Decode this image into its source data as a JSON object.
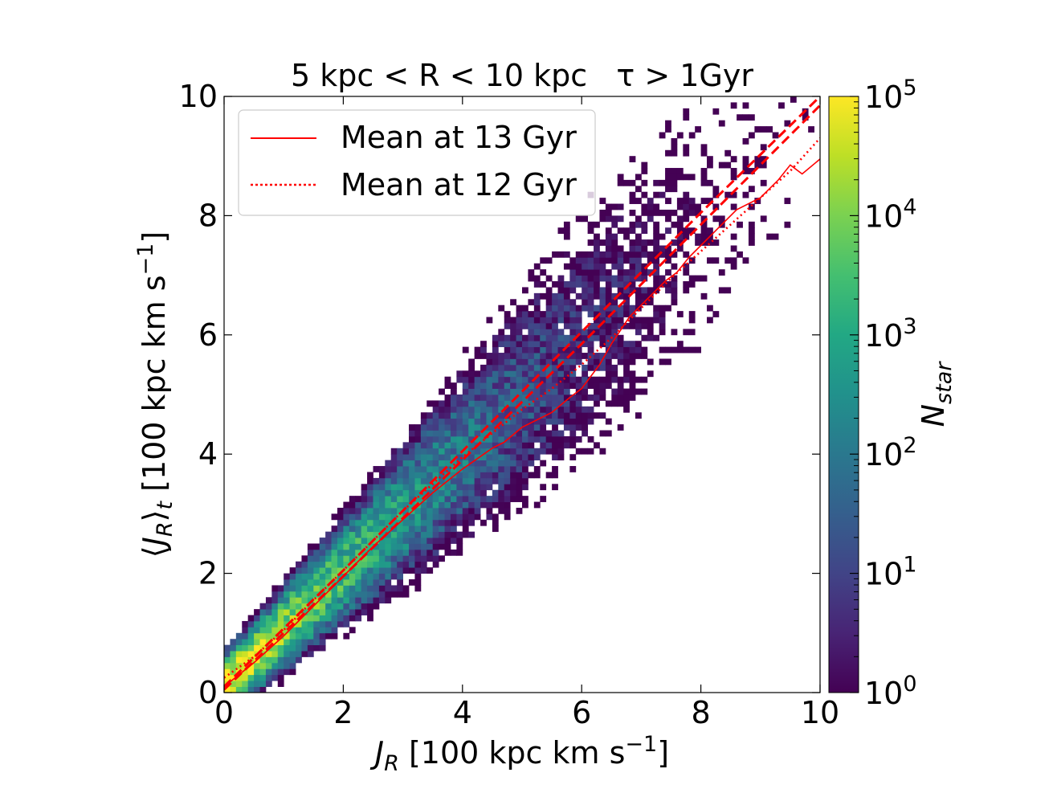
{
  "chart_data": {
    "type": "heatmap",
    "title": "5 kpc < R < 10 kpc   τ > 1Gyr",
    "xlabel": "J_R [100 kpc km s^-1]",
    "ylabel": "⟨J_R⟩_t [100 kpc km s^-1]",
    "xlim": [
      0,
      10
    ],
    "ylim": [
      0,
      10
    ],
    "x_ticks": [
      "0",
      "2",
      "4",
      "6",
      "8",
      "10"
    ],
    "y_ticks": [
      "0",
      "2",
      "4",
      "6",
      "8",
      "10"
    ],
    "colorbar": {
      "label": "N_star",
      "scale": "log",
      "range": [
        1,
        100000
      ],
      "ticks": [
        {
          "base": "10",
          "exp": "0"
        },
        {
          "base": "10",
          "exp": "1"
        },
        {
          "base": "10",
          "exp": "2"
        },
        {
          "base": "10",
          "exp": "3"
        },
        {
          "base": "10",
          "exp": "4"
        },
        {
          "base": "10",
          "exp": "5"
        }
      ],
      "colormap": "viridis"
    },
    "legend": {
      "placement": "top-left",
      "entries": [
        {
          "label": "Mean at 13 Gyr",
          "style": "solid",
          "color": "#ff0000"
        },
        {
          "label": "Mean at 12 Gyr",
          "style": "dotted",
          "color": "#ff0000"
        }
      ]
    },
    "series": [
      {
        "name": "Mean at 13 Gyr",
        "style": "solid",
        "color": "#ff0000",
        "x": [
          0,
          0.5,
          1,
          1.5,
          2,
          2.5,
          3,
          3.5,
          4,
          4.5,
          4.7,
          5,
          5.5,
          5.8,
          6,
          6.3,
          6.5,
          6.8,
          7,
          7.4,
          7.6,
          7.8,
          8,
          8.3,
          8.6,
          9,
          9.3,
          9.5,
          9.7,
          10
        ],
        "y": [
          0.1,
          0.5,
          0.95,
          1.45,
          1.95,
          2.45,
          2.9,
          3.35,
          3.75,
          4.1,
          4.2,
          4.45,
          4.7,
          4.95,
          5.1,
          5.5,
          5.85,
          6.3,
          6.5,
          6.9,
          7.05,
          7.3,
          7.5,
          7.8,
          8.1,
          8.3,
          8.6,
          8.85,
          8.7,
          8.95
        ]
      },
      {
        "name": "Mean at 12 Gyr",
        "style": "dotted",
        "color": "#ff0000",
        "x": [
          0,
          0.5,
          1,
          1.5,
          2,
          2.5,
          3,
          3.5,
          4,
          4.5,
          5,
          5.5,
          6,
          6.5,
          7,
          7.5,
          8,
          8.5,
          9,
          9.5,
          10
        ],
        "y": [
          0.25,
          0.6,
          1.05,
          1.55,
          2.05,
          2.55,
          3.05,
          3.5,
          3.95,
          4.35,
          4.75,
          5.1,
          5.5,
          5.95,
          6.45,
          6.95,
          7.4,
          7.85,
          8.3,
          8.75,
          9.3
        ]
      },
      {
        "name": "",
        "style": "dashed",
        "color": "#ff0000",
        "x": [
          0,
          2,
          4,
          6,
          8,
          10
        ],
        "y": [
          0.1,
          2.05,
          4.05,
          6.05,
          8.05,
          10.0
        ]
      },
      {
        "name": "",
        "style": "dashed",
        "color": "#ff0000",
        "x": [
          0,
          2,
          4,
          6,
          8,
          10
        ],
        "y": [
          0.05,
          1.95,
          3.9,
          5.85,
          7.85,
          9.85
        ]
      }
    ]
  }
}
